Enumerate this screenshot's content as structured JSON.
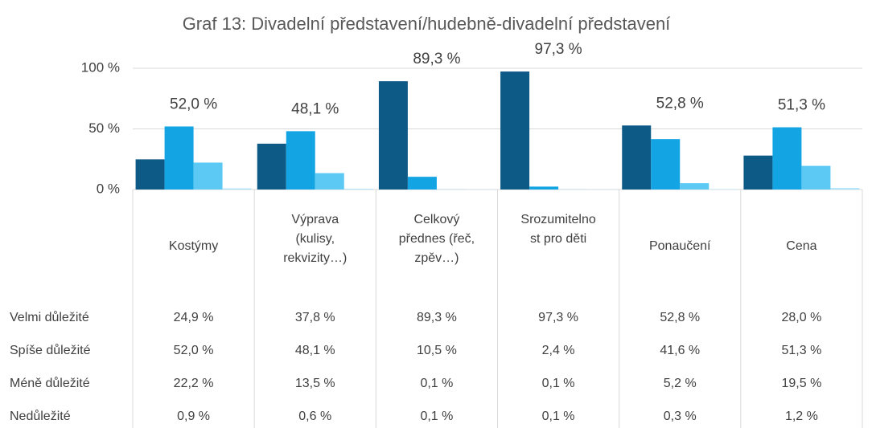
{
  "chart_data": {
    "type": "bar",
    "title": "Graf 13: Divadelní představení/hudebně-divadelní představení",
    "categories": [
      "Kostýmy",
      "Výprava (kulisy, rekvizity…)",
      "Celkový přednes (řeč, zpěv…)",
      "Srozumitelnost pro děti",
      "Ponaučení",
      "Cena"
    ],
    "series": [
      {
        "name": "Velmi důležité",
        "color": "#0e5a87",
        "values": [
          24.9,
          37.8,
          89.3,
          97.3,
          52.8,
          28.0
        ],
        "value_labels": [
          "24,9 %",
          "37,8 %",
          "89,3 %",
          "97,3 %",
          "52,8 %",
          "28,0 %"
        ]
      },
      {
        "name": "Spíše důležité",
        "color": "#12a4e3",
        "values": [
          52.0,
          48.1,
          10.5,
          2.4,
          41.6,
          51.3
        ],
        "value_labels": [
          "52,0 %",
          "48,1 %",
          "10,5 %",
          "2,4 %",
          "41,6 %",
          "51,3 %"
        ]
      },
      {
        "name": "Méně důležité",
        "color": "#5cc9f5",
        "values": [
          22.2,
          13.5,
          0.1,
          0.1,
          5.2,
          19.5
        ],
        "value_labels": [
          "22,2 %",
          "13,5 %",
          "0,1 %",
          "0,1 %",
          "5,2 %",
          "19,5 %"
        ]
      },
      {
        "name": "Nedůležité",
        "color": "#a8e1fa",
        "values": [
          0.9,
          0.6,
          0.1,
          0.1,
          0.3,
          1.2
        ],
        "value_labels": [
          "0,9 %",
          "0,6 %",
          "0,1 %",
          "0,1 %",
          "0,3 %",
          "1,2 %"
        ]
      }
    ],
    "ylim": [
      0,
      100
    ],
    "yticks": [
      {
        "value": 0,
        "label": "0 %"
      },
      {
        "value": 50,
        "label": "50 %"
      },
      {
        "value": 100,
        "label": "100 %"
      }
    ],
    "grid": true
  }
}
